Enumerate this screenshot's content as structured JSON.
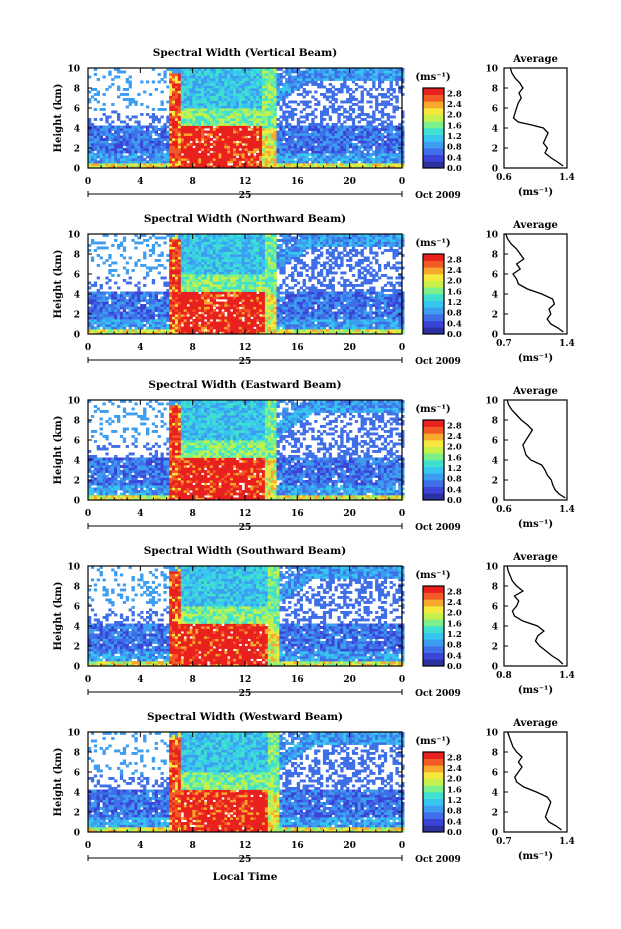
{
  "chart_data": {
    "type": "heatmap",
    "date_label": "Oct 2009",
    "day_label": "25",
    "x_axis_label": "Local Time",
    "x_ticks": [
      "0",
      "4",
      "8",
      "12",
      "16",
      "20",
      "0"
    ],
    "y_ticks": [
      "0",
      "2",
      "4",
      "6",
      "8",
      "10"
    ],
    "xlim": [
      0,
      24
    ],
    "ylim": [
      0,
      10
    ],
    "ylabel": "Height (km)",
    "colorbar": {
      "unit_label": "(ms⁻¹)",
      "ticks": [
        "0.0",
        "0.4",
        "0.8",
        "1.2",
        "1.6",
        "2.0",
        "2.4",
        "2.8"
      ],
      "range": [
        0,
        3.0
      ],
      "colors": [
        "#2b2fa0",
        "#3a44d6",
        "#3f6fe8",
        "#3d9df0",
        "#37c6ef",
        "#3fe0d0",
        "#7cf08a",
        "#c8f04a",
        "#f6e83c",
        "#f8a82c",
        "#f25a26",
        "#e8201e"
      ]
    },
    "panels": [
      {
        "title": "Spectral Width (Vertical Beam)",
        "avg_title": "Average",
        "avg_ticks": [
          "0.6",
          "1.4"
        ],
        "avg_xlim": [
          0.6,
          1.4
        ],
        "avg_xlabel": "(ms⁻¹)",
        "avg_profile": [
          {
            "h": 0.2,
            "v": 1.35
          },
          {
            "h": 0.6,
            "v": 1.28
          },
          {
            "h": 1.0,
            "v": 1.2
          },
          {
            "h": 1.5,
            "v": 1.12
          },
          {
            "h": 2.0,
            "v": 1.15
          },
          {
            "h": 2.5,
            "v": 1.1
          },
          {
            "h": 3.0,
            "v": 1.13
          },
          {
            "h": 3.5,
            "v": 1.16
          },
          {
            "h": 4.0,
            "v": 1.1
          },
          {
            "h": 4.3,
            "v": 0.95
          },
          {
            "h": 4.6,
            "v": 0.78
          },
          {
            "h": 5.0,
            "v": 0.72
          },
          {
            "h": 5.5,
            "v": 0.74
          },
          {
            "h": 6.0,
            "v": 0.76
          },
          {
            "h": 6.5,
            "v": 0.78
          },
          {
            "h": 7.0,
            "v": 0.82
          },
          {
            "h": 7.5,
            "v": 0.79
          },
          {
            "h": 8.0,
            "v": 0.84
          },
          {
            "h": 8.5,
            "v": 0.8
          },
          {
            "h": 9.0,
            "v": 0.74
          },
          {
            "h": 9.5,
            "v": 0.7
          },
          {
            "h": 10.0,
            "v": 0.68
          }
        ]
      },
      {
        "title": "Spectral Width (Northward Beam)",
        "avg_title": "Average",
        "avg_ticks": [
          "0.7",
          "1.4"
        ],
        "avg_xlim": [
          0.7,
          1.4
        ],
        "avg_xlabel": "(ms⁻¹)",
        "avg_profile": [
          {
            "h": 0.2,
            "v": 1.36
          },
          {
            "h": 0.6,
            "v": 1.3
          },
          {
            "h": 1.0,
            "v": 1.22
          },
          {
            "h": 1.5,
            "v": 1.18
          },
          {
            "h": 2.0,
            "v": 1.22
          },
          {
            "h": 2.5,
            "v": 1.2
          },
          {
            "h": 3.0,
            "v": 1.26
          },
          {
            "h": 3.5,
            "v": 1.24
          },
          {
            "h": 4.0,
            "v": 1.12
          },
          {
            "h": 4.5,
            "v": 0.96
          },
          {
            "h": 5.0,
            "v": 0.86
          },
          {
            "h": 5.5,
            "v": 0.84
          },
          {
            "h": 6.0,
            "v": 0.8
          },
          {
            "h": 6.5,
            "v": 0.88
          },
          {
            "h": 7.0,
            "v": 0.84
          },
          {
            "h": 7.5,
            "v": 0.92
          },
          {
            "h": 8.0,
            "v": 0.88
          },
          {
            "h": 8.5,
            "v": 0.84
          },
          {
            "h": 9.0,
            "v": 0.78
          },
          {
            "h": 9.5,
            "v": 0.74
          },
          {
            "h": 10.0,
            "v": 0.72
          }
        ]
      },
      {
        "title": "Spectral Width (Eastward Beam)",
        "avg_title": "Average",
        "avg_ticks": [
          "0.6",
          "1.4"
        ],
        "avg_xlim": [
          0.6,
          1.4
        ],
        "avg_xlabel": "(ms⁻¹)",
        "avg_profile": [
          {
            "h": 0.2,
            "v": 1.38
          },
          {
            "h": 0.6,
            "v": 1.3
          },
          {
            "h": 1.0,
            "v": 1.25
          },
          {
            "h": 1.5,
            "v": 1.22
          },
          {
            "h": 2.0,
            "v": 1.2
          },
          {
            "h": 2.5,
            "v": 1.15
          },
          {
            "h": 3.0,
            "v": 1.12
          },
          {
            "h": 3.5,
            "v": 1.08
          },
          {
            "h": 4.0,
            "v": 0.94
          },
          {
            "h": 4.5,
            "v": 0.88
          },
          {
            "h": 5.0,
            "v": 0.86
          },
          {
            "h": 5.5,
            "v": 0.84
          },
          {
            "h": 6.0,
            "v": 0.88
          },
          {
            "h": 6.5,
            "v": 0.92
          },
          {
            "h": 7.0,
            "v": 0.96
          },
          {
            "h": 7.5,
            "v": 0.9
          },
          {
            "h": 8.0,
            "v": 0.82
          },
          {
            "h": 8.5,
            "v": 0.76
          },
          {
            "h": 9.0,
            "v": 0.7
          },
          {
            "h": 9.5,
            "v": 0.66
          },
          {
            "h": 10.0,
            "v": 0.64
          }
        ]
      },
      {
        "title": "Spectral Width (Southward Beam)",
        "avg_title": "Average",
        "avg_ticks": [
          "0.8",
          "1.4"
        ],
        "avg_xlim": [
          0.8,
          1.4
        ],
        "avg_xlabel": "(ms⁻¹)",
        "avg_profile": [
          {
            "h": 0.2,
            "v": 1.36
          },
          {
            "h": 0.6,
            "v": 1.32
          },
          {
            "h": 1.0,
            "v": 1.26
          },
          {
            "h": 1.5,
            "v": 1.2
          },
          {
            "h": 2.0,
            "v": 1.14
          },
          {
            "h": 2.5,
            "v": 1.1
          },
          {
            "h": 3.0,
            "v": 1.12
          },
          {
            "h": 3.5,
            "v": 1.18
          },
          {
            "h": 4.0,
            "v": 1.12
          },
          {
            "h": 4.5,
            "v": 0.98
          },
          {
            "h": 5.0,
            "v": 0.9
          },
          {
            "h": 5.5,
            "v": 0.88
          },
          {
            "h": 6.0,
            "v": 0.92
          },
          {
            "h": 6.5,
            "v": 0.94
          },
          {
            "h": 7.0,
            "v": 0.9
          },
          {
            "h": 7.5,
            "v": 0.98
          },
          {
            "h": 8.0,
            "v": 0.92
          },
          {
            "h": 8.5,
            "v": 0.88
          },
          {
            "h": 9.0,
            "v": 0.86
          },
          {
            "h": 9.5,
            "v": 0.84
          },
          {
            "h": 10.0,
            "v": 0.83
          }
        ]
      },
      {
        "title": "Spectral Width (Westward Beam)",
        "avg_title": "Average",
        "avg_ticks": [
          "0.7",
          "1.4"
        ],
        "avg_xlim": [
          0.7,
          1.4
        ],
        "avg_xlabel": "(ms⁻¹)",
        "avg_profile": [
          {
            "h": 0.2,
            "v": 1.34
          },
          {
            "h": 0.6,
            "v": 1.28
          },
          {
            "h": 1.0,
            "v": 1.2
          },
          {
            "h": 1.5,
            "v": 1.16
          },
          {
            "h": 2.0,
            "v": 1.18
          },
          {
            "h": 2.5,
            "v": 1.2
          },
          {
            "h": 3.0,
            "v": 1.22
          },
          {
            "h": 3.5,
            "v": 1.18
          },
          {
            "h": 4.0,
            "v": 1.06
          },
          {
            "h": 4.5,
            "v": 0.92
          },
          {
            "h": 5.0,
            "v": 0.84
          },
          {
            "h": 5.5,
            "v": 0.82
          },
          {
            "h": 6.0,
            "v": 0.86
          },
          {
            "h": 6.5,
            "v": 0.9
          },
          {
            "h": 7.0,
            "v": 0.86
          },
          {
            "h": 7.5,
            "v": 0.9
          },
          {
            "h": 8.0,
            "v": 0.84
          },
          {
            "h": 8.5,
            "v": 0.8
          },
          {
            "h": 9.0,
            "v": 0.78
          },
          {
            "h": 9.5,
            "v": 0.76
          },
          {
            "h": 10.0,
            "v": 0.74
          }
        ]
      }
    ]
  }
}
